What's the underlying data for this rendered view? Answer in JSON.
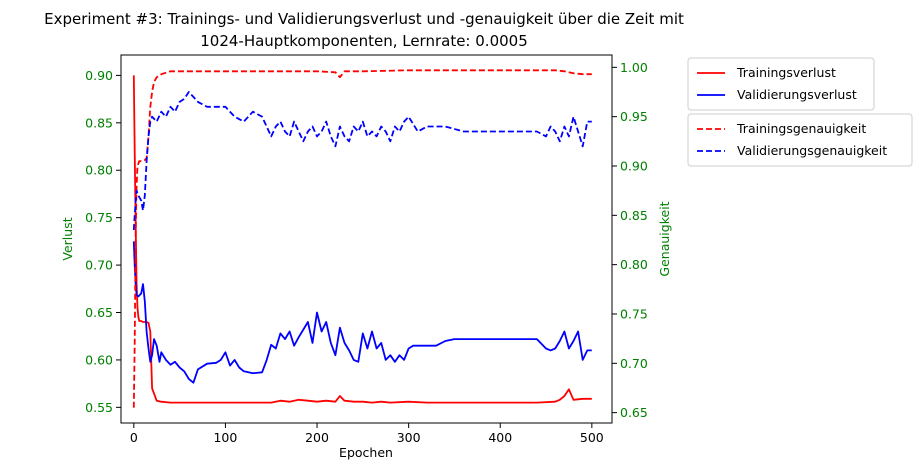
{
  "chart_data": {
    "type": "line",
    "title_line1": "Experiment #3: Trainings- und Validierungsverlust und -genauigkeit über die Zeit mit",
    "title_line2": "1024-Hauptkomponenten, Lernrate: 0.0005",
    "xlabel": "Epochen",
    "ylabel_left": "Verlust",
    "ylabel_right": "Genauigkeit",
    "xlim": [
      -14,
      522
    ],
    "ylim_left": [
      0.5335,
      0.9215
    ],
    "ylim_right": [
      0.6395,
      1.0125
    ],
    "xticks": [
      0,
      100,
      200,
      300,
      400,
      500
    ],
    "yticks_left": [
      0.55,
      0.6,
      0.65,
      0.7,
      0.75,
      0.8,
      0.85,
      0.9
    ],
    "yticks_right": [
      0.65,
      0.7,
      0.75,
      0.8,
      0.85,
      0.9,
      0.95,
      1.0
    ],
    "grid": false,
    "colors": {
      "train": "#ff0000",
      "val": "#0000ff",
      "axis_text": "#008000",
      "frame": "#000000"
    },
    "legend_loss": [
      "Trainingsverlust",
      "Validierungsverlust"
    ],
    "legend_acc": [
      "Trainingsgenauigkeit",
      "Validierungsgenauigkeit"
    ],
    "legend_placement": "outside-right",
    "series": [
      {
        "name": "Trainingsverlust",
        "axis": "left",
        "style": "solid",
        "x": [
          0,
          1,
          2,
          3,
          4,
          5,
          6,
          8,
          10,
          12,
          14,
          16,
          18,
          20,
          25,
          30,
          40,
          60,
          80,
          100,
          120,
          150,
          160,
          170,
          180,
          190,
          200,
          210,
          220,
          225,
          230,
          240,
          250,
          260,
          270,
          280,
          300,
          320,
          350,
          380,
          400,
          420,
          440,
          460,
          465,
          470,
          475,
          480,
          490,
          500
        ],
        "y": [
          0.9,
          0.82,
          0.74,
          0.68,
          0.655,
          0.645,
          0.641,
          0.641,
          0.64,
          0.64,
          0.64,
          0.639,
          0.63,
          0.57,
          0.557,
          0.556,
          0.555,
          0.555,
          0.555,
          0.555,
          0.555,
          0.555,
          0.557,
          0.556,
          0.558,
          0.557,
          0.556,
          0.557,
          0.556,
          0.562,
          0.557,
          0.556,
          0.556,
          0.555,
          0.556,
          0.555,
          0.556,
          0.555,
          0.555,
          0.555,
          0.555,
          0.555,
          0.555,
          0.556,
          0.558,
          0.562,
          0.569,
          0.558,
          0.559,
          0.559
        ]
      },
      {
        "name": "Validierungsverlust",
        "axis": "left",
        "style": "solid",
        "x": [
          0,
          1,
          2,
          3,
          5,
          8,
          10,
          12,
          14,
          16,
          18,
          20,
          22,
          25,
          28,
          30,
          35,
          40,
          45,
          50,
          55,
          60,
          65,
          70,
          80,
          90,
          95,
          100,
          105,
          110,
          115,
          120,
          130,
          140,
          145,
          150,
          155,
          160,
          165,
          170,
          175,
          180,
          185,
          190,
          195,
          200,
          205,
          210,
          215,
          220,
          225,
          230,
          235,
          240,
          245,
          250,
          255,
          260,
          265,
          270,
          275,
          280,
          285,
          290,
          295,
          300,
          305,
          310,
          320,
          330,
          340,
          350,
          360,
          380,
          400,
          420,
          440,
          450,
          455,
          460,
          465,
          470,
          475,
          480,
          485,
          490,
          495,
          500
        ],
        "y": [
          0.725,
          0.7,
          0.68,
          0.668,
          0.667,
          0.67,
          0.68,
          0.662,
          0.63,
          0.612,
          0.598,
          0.605,
          0.622,
          0.615,
          0.598,
          0.608,
          0.6,
          0.595,
          0.598,
          0.592,
          0.588,
          0.58,
          0.576,
          0.59,
          0.596,
          0.597,
          0.6,
          0.608,
          0.594,
          0.6,
          0.592,
          0.588,
          0.586,
          0.587,
          0.6,
          0.616,
          0.612,
          0.628,
          0.622,
          0.63,
          0.615,
          0.624,
          0.632,
          0.64,
          0.618,
          0.65,
          0.63,
          0.64,
          0.618,
          0.605,
          0.634,
          0.618,
          0.61,
          0.6,
          0.598,
          0.628,
          0.612,
          0.63,
          0.612,
          0.618,
          0.6,
          0.605,
          0.598,
          0.605,
          0.6,
          0.612,
          0.615,
          0.615,
          0.615,
          0.615,
          0.62,
          0.622,
          0.622,
          0.622,
          0.622,
          0.622,
          0.622,
          0.612,
          0.61,
          0.612,
          0.62,
          0.63,
          0.612,
          0.62,
          0.63,
          0.6,
          0.61,
          0.61
        ]
      },
      {
        "name": "Trainingsgenauigkeit",
        "axis": "right",
        "style": "dashed",
        "x": [
          0,
          1,
          2,
          3,
          4,
          6,
          8,
          10,
          12,
          14,
          16,
          18,
          20,
          22,
          25,
          30,
          40,
          60,
          80,
          100,
          150,
          200,
          220,
          225,
          230,
          250,
          300,
          350,
          400,
          450,
          460,
          470,
          480,
          490,
          500
        ],
        "y": [
          0.655,
          0.72,
          0.83,
          0.88,
          0.9,
          0.905,
          0.905,
          0.905,
          0.906,
          0.908,
          0.93,
          0.96,
          0.975,
          0.985,
          0.99,
          0.993,
          0.996,
          0.996,
          0.996,
          0.996,
          0.996,
          0.996,
          0.995,
          0.99,
          0.996,
          0.996,
          0.997,
          0.997,
          0.997,
          0.997,
          0.997,
          0.996,
          0.994,
          0.993,
          0.993
        ]
      },
      {
        "name": "Validierungsgenauigkeit",
        "axis": "right",
        "style": "dashed",
        "x": [
          0,
          1,
          2,
          3,
          5,
          8,
          10,
          12,
          14,
          16,
          18,
          20,
          25,
          30,
          35,
          40,
          45,
          50,
          55,
          60,
          65,
          70,
          80,
          100,
          110,
          120,
          130,
          140,
          150,
          155,
          160,
          165,
          170,
          175,
          180,
          185,
          190,
          195,
          200,
          205,
          210,
          215,
          220,
          225,
          230,
          235,
          240,
          245,
          250,
          255,
          260,
          265,
          270,
          275,
          280,
          285,
          290,
          295,
          300,
          310,
          320,
          340,
          360,
          380,
          400,
          420,
          440,
          450,
          455,
          460,
          465,
          470,
          475,
          480,
          485,
          490,
          495,
          500
        ],
        "y": [
          0.835,
          0.85,
          0.865,
          0.875,
          0.87,
          0.865,
          0.855,
          0.87,
          0.905,
          0.93,
          0.945,
          0.95,
          0.945,
          0.955,
          0.95,
          0.96,
          0.955,
          0.965,
          0.968,
          0.975,
          0.97,
          0.965,
          0.96,
          0.96,
          0.95,
          0.945,
          0.955,
          0.95,
          0.93,
          0.94,
          0.945,
          0.935,
          0.93,
          0.945,
          0.935,
          0.925,
          0.935,
          0.94,
          0.93,
          0.935,
          0.945,
          0.93,
          0.92,
          0.94,
          0.93,
          0.925,
          0.94,
          0.935,
          0.945,
          0.93,
          0.935,
          0.93,
          0.94,
          0.935,
          0.925,
          0.94,
          0.935,
          0.945,
          0.95,
          0.935,
          0.94,
          0.94,
          0.935,
          0.935,
          0.935,
          0.935,
          0.935,
          0.93,
          0.94,
          0.935,
          0.925,
          0.94,
          0.93,
          0.95,
          0.935,
          0.92,
          0.945,
          0.945
        ]
      }
    ]
  }
}
